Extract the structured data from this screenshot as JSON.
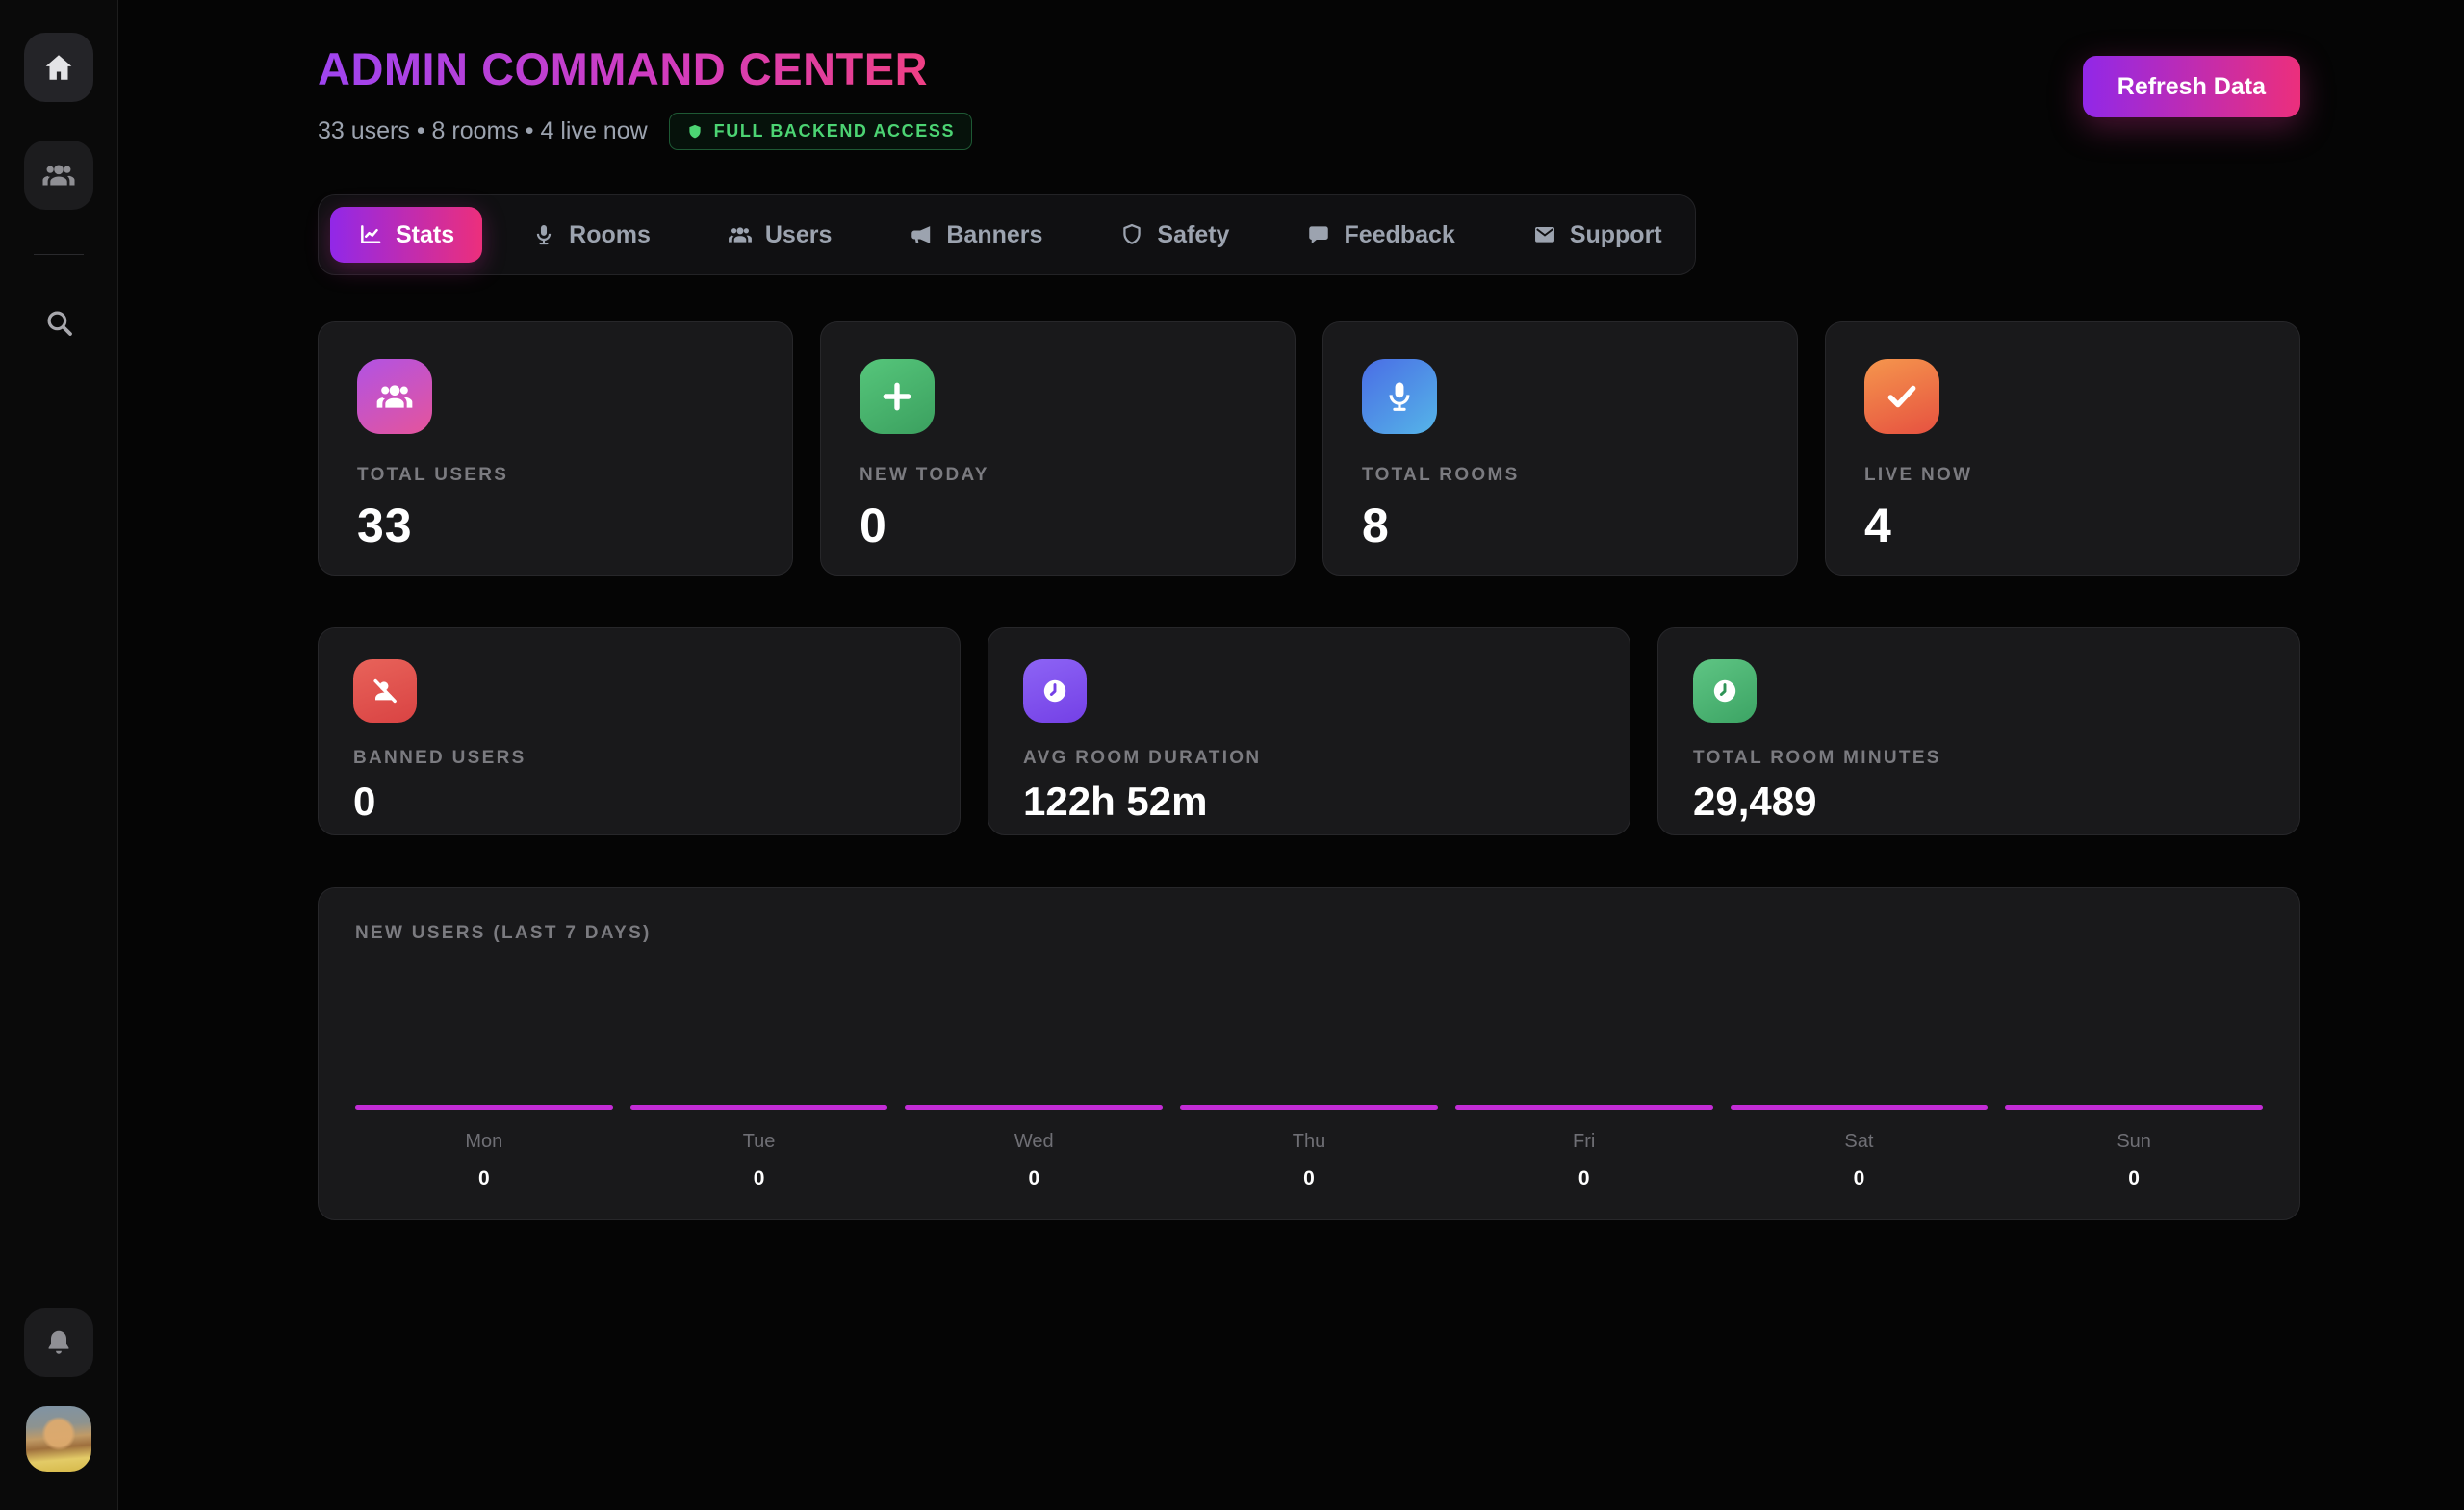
{
  "header": {
    "title": "ADMIN COMMAND CENTER",
    "subtitle": "33 users • 8 rooms • 4 live now",
    "badge_label": "FULL BACKEND ACCESS",
    "refresh_label": "Refresh Data"
  },
  "sidebar": {
    "icons": [
      "home-icon",
      "users-icon",
      "search-icon",
      "bell-icon"
    ],
    "avatar": "user-avatar-photo"
  },
  "tabs": {
    "items": [
      {
        "label": "Stats",
        "icon": "chart-line-icon",
        "active": true
      },
      {
        "label": "Rooms",
        "icon": "microphone-icon",
        "active": false
      },
      {
        "label": "Users",
        "icon": "users-icon",
        "active": false
      },
      {
        "label": "Banners",
        "icon": "megaphone-icon",
        "active": false
      },
      {
        "label": "Safety",
        "icon": "shield-icon",
        "active": false
      },
      {
        "label": "Feedback",
        "icon": "chat-bubble-icon",
        "active": false
      },
      {
        "label": "Support",
        "icon": "envelope-icon",
        "active": false
      }
    ]
  },
  "stats": {
    "row1": [
      {
        "label": "TOTAL USERS",
        "value": "33",
        "icon": "users-icon",
        "tile_gradient": [
          "#b153e4",
          "#e5549b"
        ]
      },
      {
        "label": "NEW TODAY",
        "value": "0",
        "icon": "plus-icon",
        "tile_gradient": [
          "#56c67b",
          "#3ba05f"
        ]
      },
      {
        "label": "TOTAL ROOMS",
        "value": "8",
        "icon": "microphone-icon",
        "tile_gradient": [
          "#4a6de5",
          "#55b5e8"
        ]
      },
      {
        "label": "LIVE NOW",
        "value": "4",
        "icon": "check-icon",
        "tile_gradient": [
          "#f5964d",
          "#e65140"
        ]
      }
    ],
    "row2": [
      {
        "label": "BANNED USERS",
        "value": "0",
        "icon": "user-slash-icon",
        "tile_gradient": [
          "#e8635a",
          "#d94343"
        ]
      },
      {
        "label": "AVG ROOM DURATION",
        "value": "122h 52m",
        "icon": "clock-icon",
        "tile_gradient": [
          "#8d64f5",
          "#7440e6"
        ]
      },
      {
        "label": "TOTAL ROOM MINUTES",
        "value": "29,489",
        "icon": "clock-icon",
        "tile_gradient": [
          "#5fc584",
          "#3ca464"
        ]
      }
    ]
  },
  "chart_data": {
    "type": "bar",
    "title": "NEW USERS (LAST 7 DAYS)",
    "categories": [
      "Mon",
      "Tue",
      "Wed",
      "Thu",
      "Fri",
      "Sat",
      "Sun"
    ],
    "values": [
      0,
      0,
      0,
      0,
      0,
      0,
      0
    ],
    "bar_color": "#c32cd6",
    "grid": false,
    "legend": false
  },
  "colors": {
    "page_bg": "#050505",
    "card_bg": "#19191b",
    "accent_gradient": [
      "#9128e8",
      "#ec2f7c"
    ],
    "title_gradient": [
      "#9e44f0",
      "#d13cc0",
      "#f4417b"
    ],
    "badge_green": "#4cd473",
    "bar_magenta": "#c32cd6",
    "muted_text": "#9ca3af",
    "label_text": "#7b7b80"
  }
}
